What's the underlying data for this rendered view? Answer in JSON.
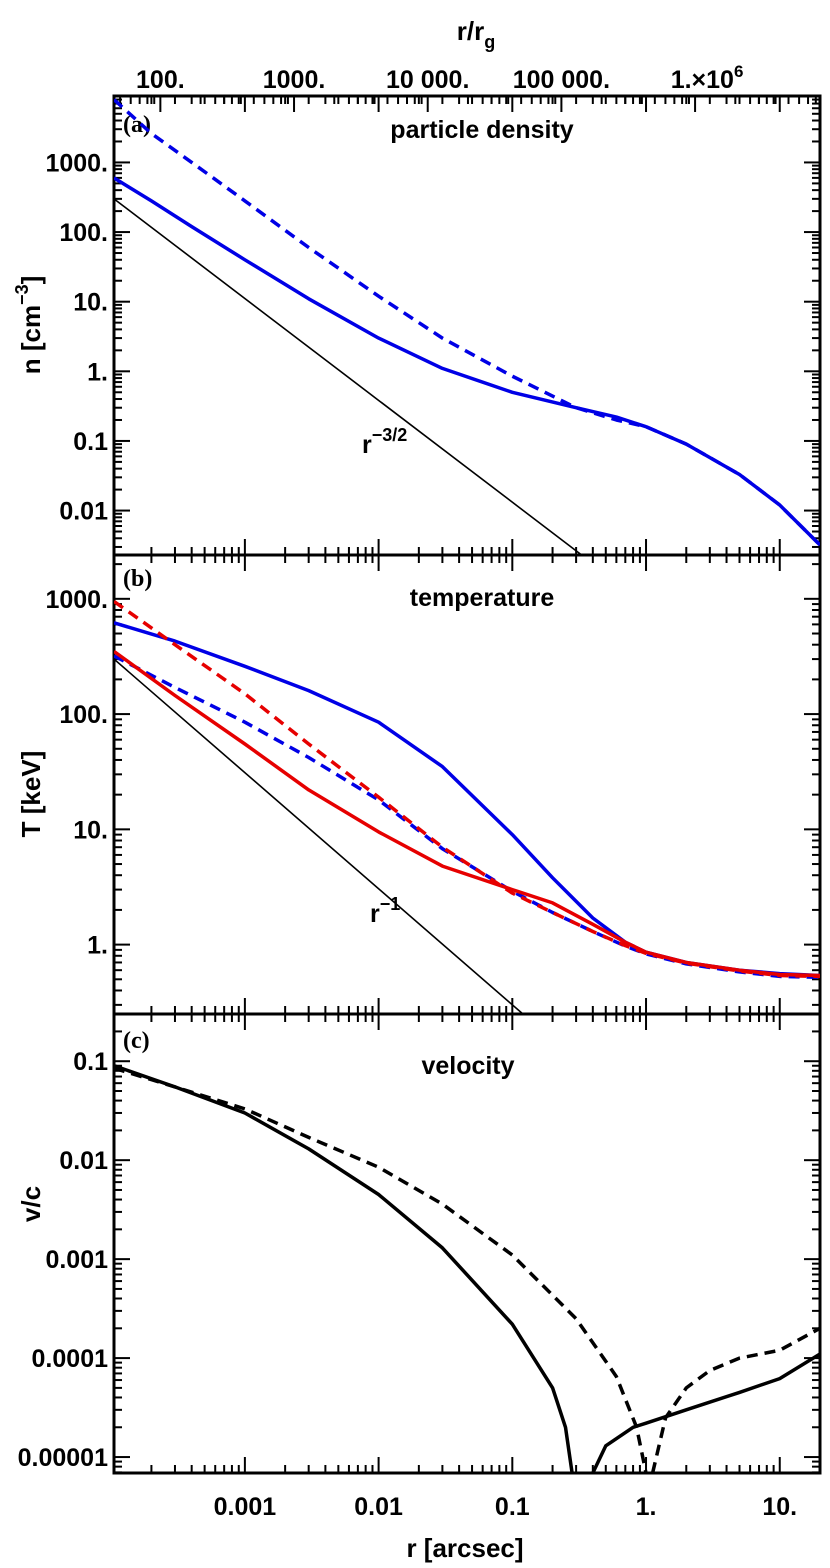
{
  "chart_data": {
    "type": "line",
    "shared_x": {
      "label": "r [arcsec]",
      "scale": "log",
      "range": [
        0.000105,
        20
      ],
      "tick_labels": [
        {
          "value": 0.001,
          "label": "0.001"
        },
        {
          "value": 0.01,
          "label": "0.01"
        },
        {
          "value": 0.1,
          "label": "0.1"
        },
        {
          "value": 1,
          "label": "1."
        },
        {
          "value": 10,
          "label": "10."
        }
      ]
    },
    "top_x": {
      "label": "r/r",
      "label_sub": "g",
      "scale": "log",
      "range": [
        45,
        8600000
      ],
      "tick_labels": [
        {
          "value": 100,
          "label": "100."
        },
        {
          "value": 1000,
          "label": "1000."
        },
        {
          "value": 10000,
          "label": "10 000."
        },
        {
          "value": 100000,
          "label": "100 000."
        },
        {
          "value": 1000000,
          "label": "1.×10",
          "sup": "6"
        }
      ]
    },
    "panels": [
      {
        "id": "a",
        "panel_label": "(a)",
        "title": "particle density",
        "ylabel": "n [cm",
        "ylabel_sup": "−3",
        "ylabel_end": "]",
        "yscale": "log",
        "ylim": [
          0.0023,
          9000
        ],
        "y_tick_labels": [
          {
            "value": 0.01,
            "label": "0.01"
          },
          {
            "value": 0.1,
            "label": "0.1"
          },
          {
            "value": 1,
            "label": "1."
          },
          {
            "value": 10,
            "label": "10."
          },
          {
            "value": 100,
            "label": "100."
          },
          {
            "value": 1000,
            "label": "1000."
          }
        ],
        "series": [
          {
            "color": "#0000e6",
            "dash": true,
            "x": [
              0.000105,
              0.0002,
              0.0004,
              0.001,
              0.003,
              0.01,
              0.03,
              0.1,
              0.3,
              0.6,
              1,
              2,
              5,
              10,
              20
            ],
            "y": [
              8000,
              2600,
              1000,
              280,
              60,
              12,
              3,
              0.85,
              0.3,
              0.2,
              0.16,
              0.09,
              0.033,
              0.012,
              0.0032
            ]
          },
          {
            "color": "#0000e6",
            "dash": false,
            "x": [
              0.000105,
              0.0002,
              0.0004,
              0.001,
              0.003,
              0.01,
              0.03,
              0.1,
              0.3,
              0.6,
              1,
              2,
              5,
              10,
              20
            ],
            "y": [
              600,
              280,
              120,
              40,
              11,
              3,
              1.1,
              0.5,
              0.3,
              0.22,
              0.16,
              0.09,
              0.033,
              0.012,
              0.0032
            ]
          }
        ],
        "ref_line": {
          "label": "r",
          "label_sup": "−3/2",
          "x": [
            0.000105,
            0.33
          ],
          "y": [
            300,
            0.0023
          ]
        }
      },
      {
        "id": "b",
        "panel_label": "(b)",
        "title": "temperature",
        "ylabel": "T [keV]",
        "yscale": "log",
        "ylim": [
          0.25,
          2400
        ],
        "y_tick_labels": [
          {
            "value": 1,
            "label": "1."
          },
          {
            "value": 10,
            "label": "10."
          },
          {
            "value": 100,
            "label": "100."
          },
          {
            "value": 1000,
            "label": "1000."
          }
        ],
        "series": [
          {
            "color": "#0000e6",
            "dash": false,
            "x": [
              0.000105,
              0.0003,
              0.001,
              0.003,
              0.01,
              0.03,
              0.1,
              0.2,
              0.4,
              0.7,
              1,
              2,
              5,
              10,
              20
            ],
            "y": [
              620,
              430,
              260,
              160,
              85,
              35,
              9,
              3.8,
              1.7,
              1.05,
              0.86,
              0.7,
              0.6,
              0.56,
              0.54
            ]
          },
          {
            "color": "#0000e6",
            "dash": true,
            "x": [
              0.000105,
              0.0003,
              0.001,
              0.003,
              0.01,
              0.03,
              0.1,
              0.2,
              0.4,
              0.7,
              1,
              2,
              5,
              10,
              20
            ],
            "y": [
              320,
              170,
              85,
              42,
              18,
              6.8,
              2.9,
              1.9,
              1.3,
              0.97,
              0.83,
              0.68,
              0.58,
              0.53,
              0.52
            ]
          },
          {
            "color": "#e60000",
            "dash": false,
            "x": [
              0.000105,
              0.0003,
              0.001,
              0.003,
              0.01,
              0.03,
              0.1,
              0.2,
              0.4,
              0.7,
              1,
              2,
              5,
              10,
              20
            ],
            "y": [
              350,
              145,
              55,
              22,
              9.5,
              4.8,
              3.0,
              2.3,
              1.5,
              1.05,
              0.86,
              0.7,
              0.6,
              0.55,
              0.54
            ]
          },
          {
            "color": "#e60000",
            "dash": true,
            "x": [
              0.000105,
              0.0003,
              0.001,
              0.003,
              0.01,
              0.03,
              0.1,
              0.2,
              0.4,
              0.7,
              1,
              2,
              5,
              10,
              20
            ],
            "y": [
              950,
              400,
              150,
              55,
              19,
              7,
              2.8,
              1.9,
              1.3,
              0.98,
              0.84,
              0.69,
              0.59,
              0.54,
              0.53
            ]
          }
        ],
        "ref_line": {
          "label": "r",
          "label_sup": "−1",
          "x": [
            0.000105,
            0.12
          ],
          "y": [
            300,
            0.25
          ]
        }
      },
      {
        "id": "c",
        "panel_label": "(c)",
        "title": "velocity",
        "ylabel": "v/c",
        "yscale": "log",
        "ylim": [
          6.9e-06,
          0.3
        ],
        "y_tick_labels": [
          {
            "value": 1e-05,
            "label": "0.00001"
          },
          {
            "value": 0.0001,
            "label": "0.0001"
          },
          {
            "value": 0.001,
            "label": "0.001"
          },
          {
            "value": 0.01,
            "label": "0.01"
          },
          {
            "value": 0.1,
            "label": "0.1"
          }
        ],
        "series": [
          {
            "color": "#000000",
            "dash": false,
            "x": [
              0.000105,
              0.0003,
              0.001,
              0.003,
              0.01,
              0.03,
              0.1,
              0.2,
              0.25,
              0.28
            ],
            "y": [
              0.09,
              0.055,
              0.03,
              0.013,
              0.0045,
              0.0013,
              0.00022,
              5e-05,
              2e-05,
              6.9e-06
            ]
          },
          {
            "color": "#000000",
            "dash": false,
            "x": [
              0.4,
              0.5,
              0.8,
              1,
              2,
              5,
              10,
              20
            ],
            "y": [
              6.9e-06,
              1.3e-05,
              2e-05,
              2.2e-05,
              3e-05,
              4.5e-05,
              6.2e-05,
              0.00011
            ]
          },
          {
            "color": "#000000",
            "dash": true,
            "x": [
              0.000105,
              0.0003,
              0.001,
              0.003,
              0.01,
              0.03,
              0.1,
              0.3,
              0.6,
              0.85,
              1.0
            ],
            "y": [
              0.085,
              0.055,
              0.033,
              0.017,
              0.0085,
              0.0036,
              0.0011,
              0.00025,
              6.5e-05,
              2e-05,
              6.9e-06
            ]
          },
          {
            "color": "#000000",
            "dash": true,
            "x": [
              1.12,
              1.4,
              2,
              3,
              5,
              10,
              20
            ],
            "y": [
              6.9e-06,
              2.5e-05,
              5e-05,
              7.5e-05,
              0.0001,
              0.00012,
              0.0002
            ]
          }
        ]
      }
    ]
  }
}
